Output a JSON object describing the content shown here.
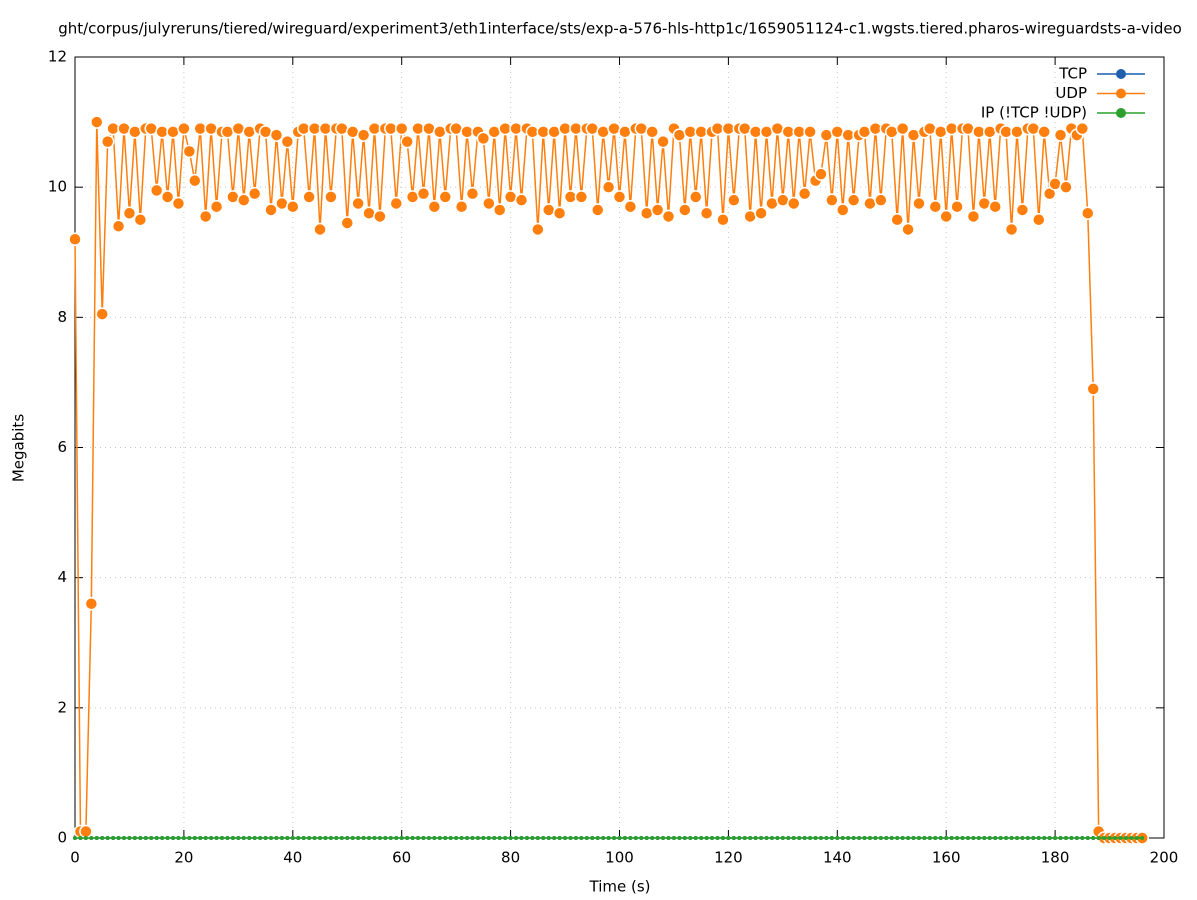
{
  "chart_data": {
    "type": "line",
    "title": "ght/corpus/julyreruns/tiered/wireguard/experiment3/eth1interface/sts/exp-a-576-hls-http1c/1659051124-c1.wgsts.tiered.pharos-wireguardsts-a-video",
    "x_label": "Time (s)",
    "y_label": "Megabits",
    "x": [
      0,
      1,
      2,
      3,
      4,
      5,
      6,
      7,
      8,
      9,
      10,
      11,
      12,
      13,
      14,
      15,
      16,
      17,
      18,
      19,
      20,
      21,
      22,
      23,
      24,
      25,
      26,
      27,
      28,
      29,
      30,
      31,
      32,
      33,
      34,
      35,
      36,
      37,
      38,
      39,
      40,
      41,
      42,
      43,
      44,
      45,
      46,
      47,
      48,
      49,
      50,
      51,
      52,
      53,
      54,
      55,
      56,
      57,
      58,
      59,
      60,
      61,
      62,
      63,
      64,
      65,
      66,
      67,
      68,
      69,
      70,
      71,
      72,
      73,
      74,
      75,
      76,
      77,
      78,
      79,
      80,
      81,
      82,
      83,
      84,
      85,
      86,
      87,
      88,
      89,
      90,
      91,
      92,
      93,
      94,
      95,
      96,
      97,
      98,
      99,
      100,
      101,
      102,
      103,
      104,
      105,
      106,
      107,
      108,
      109,
      110,
      111,
      112,
      113,
      114,
      115,
      116,
      117,
      118,
      119,
      120,
      121,
      122,
      123,
      124,
      125,
      126,
      127,
      128,
      129,
      130,
      131,
      132,
      133,
      134,
      135,
      136,
      137,
      138,
      139,
      140,
      141,
      142,
      143,
      144,
      145,
      146,
      147,
      148,
      149,
      150,
      151,
      152,
      153,
      154,
      155,
      156,
      157,
      158,
      159,
      160,
      161,
      162,
      163,
      164,
      165,
      166,
      167,
      168,
      169,
      170,
      171,
      172,
      173,
      174,
      175,
      176,
      177,
      178,
      179,
      180,
      181,
      182,
      183,
      184,
      185,
      186,
      187,
      188,
      189,
      190,
      191,
      192,
      193,
      194,
      195,
      196
    ],
    "series": [
      {
        "name": "TCP",
        "color": "#1f5fad",
        "values": [
          0,
          0,
          0,
          0,
          0,
          0,
          0,
          0,
          0,
          0,
          0,
          0,
          0,
          0,
          0,
          0,
          0,
          0,
          0,
          0,
          0,
          0,
          0,
          0,
          0,
          0,
          0,
          0,
          0,
          0,
          0,
          0,
          0,
          0,
          0,
          0,
          0,
          0,
          0,
          0,
          0,
          0,
          0,
          0,
          0,
          0,
          0,
          0,
          0,
          0,
          0,
          0,
          0,
          0,
          0,
          0,
          0,
          0,
          0,
          0,
          0,
          0,
          0,
          0,
          0,
          0,
          0,
          0,
          0,
          0,
          0,
          0,
          0,
          0,
          0,
          0,
          0,
          0,
          0,
          0,
          0,
          0,
          0,
          0,
          0,
          0,
          0,
          0,
          0,
          0,
          0,
          0,
          0,
          0,
          0,
          0,
          0,
          0,
          0,
          0,
          0,
          0,
          0,
          0,
          0,
          0,
          0,
          0,
          0,
          0,
          0,
          0,
          0,
          0,
          0,
          0,
          0,
          0,
          0,
          0,
          0,
          0,
          0,
          0,
          0,
          0,
          0,
          0,
          0,
          0,
          0,
          0,
          0,
          0,
          0,
          0,
          0,
          0,
          0,
          0,
          0,
          0,
          0,
          0,
          0,
          0,
          0,
          0,
          0,
          0,
          0,
          0,
          0,
          0,
          0,
          0,
          0,
          0,
          0,
          0,
          0,
          0,
          0,
          0,
          0,
          0,
          0,
          0,
          0,
          0,
          0,
          0,
          0,
          0,
          0,
          0,
          0,
          0,
          0,
          0,
          0,
          0,
          0,
          0,
          0,
          0,
          0,
          0,
          0,
          0,
          0,
          0,
          0,
          0,
          0,
          0,
          0
        ]
      },
      {
        "name": "UDP",
        "color": "#ff7f0e",
        "values": [
          9.2,
          0.1,
          0.1,
          3.6,
          11.0,
          8.05,
          10.7,
          10.9,
          9.4,
          10.9,
          9.6,
          10.85,
          9.5,
          10.9,
          10.9,
          9.95,
          10.85,
          9.85,
          10.85,
          9.75,
          10.9,
          10.55,
          10.1,
          10.9,
          9.55,
          10.9,
          9.7,
          10.85,
          10.85,
          9.85,
          10.9,
          9.8,
          10.85,
          9.9,
          10.9,
          10.85,
          9.65,
          10.8,
          9.75,
          10.7,
          9.7,
          10.85,
          10.9,
          9.85,
          10.9,
          9.35,
          10.9,
          9.85,
          10.9,
          10.9,
          9.45,
          10.85,
          9.75,
          10.8,
          9.6,
          10.9,
          9.55,
          10.9,
          10.9,
          9.75,
          10.9,
          10.7,
          9.85,
          10.9,
          9.9,
          10.9,
          9.7,
          10.85,
          9.85,
          10.9,
          10.9,
          9.7,
          10.85,
          9.9,
          10.85,
          10.75,
          9.75,
          10.85,
          9.65,
          10.9,
          9.85,
          10.9,
          9.8,
          10.9,
          10.85,
          9.35,
          10.85,
          9.65,
          10.85,
          9.6,
          10.9,
          9.85,
          10.9,
          9.85,
          10.9,
          10.9,
          9.65,
          10.85,
          10.0,
          10.9,
          9.85,
          10.85,
          9.7,
          10.9,
          10.9,
          9.6,
          10.85,
          9.65,
          10.7,
          9.55,
          10.9,
          10.8,
          9.65,
          10.85,
          9.85,
          10.85,
          9.6,
          10.85,
          10.9,
          9.5,
          10.9,
          9.8,
          10.9,
          10.9,
          9.55,
          10.85,
          9.6,
          10.85,
          9.75,
          10.9,
          9.8,
          10.85,
          9.75,
          10.85,
          9.9,
          10.85,
          10.1,
          10.2,
          10.8,
          9.8,
          10.85,
          9.65,
          10.8,
          9.8,
          10.8,
          10.85,
          9.75,
          10.9,
          9.8,
          10.9,
          10.85,
          9.5,
          10.9,
          9.35,
          10.8,
          9.75,
          10.85,
          10.9,
          9.7,
          10.85,
          9.55,
          10.9,
          9.7,
          10.9,
          10.9,
          9.55,
          10.85,
          9.75,
          10.85,
          9.7,
          10.9,
          10.85,
          9.35,
          10.85,
          9.65,
          10.9,
          10.9,
          9.5,
          10.85,
          9.9,
          10.05,
          10.8,
          10.0,
          10.9,
          10.8,
          10.9,
          9.6,
          6.9,
          0.1,
          0,
          0,
          0,
          0,
          0,
          0,
          0,
          0
        ]
      },
      {
        "name": "IP (!TCP  !UDP)",
        "color": "#2ca02c",
        "values": [
          0,
          0,
          0,
          0,
          0,
          0,
          0,
          0,
          0,
          0,
          0,
          0,
          0,
          0,
          0,
          0,
          0,
          0,
          0,
          0,
          0,
          0,
          0,
          0,
          0,
          0,
          0,
          0,
          0,
          0,
          0,
          0,
          0,
          0,
          0,
          0,
          0,
          0,
          0,
          0,
          0,
          0,
          0,
          0,
          0,
          0,
          0,
          0,
          0,
          0,
          0,
          0,
          0,
          0,
          0,
          0,
          0,
          0,
          0,
          0,
          0,
          0,
          0,
          0,
          0,
          0,
          0,
          0,
          0,
          0,
          0,
          0,
          0,
          0,
          0,
          0,
          0,
          0,
          0,
          0,
          0,
          0,
          0,
          0,
          0,
          0,
          0,
          0,
          0,
          0,
          0,
          0,
          0,
          0,
          0,
          0,
          0,
          0,
          0,
          0,
          0,
          0,
          0,
          0,
          0,
          0,
          0,
          0,
          0,
          0,
          0,
          0,
          0,
          0,
          0,
          0,
          0,
          0,
          0,
          0,
          0,
          0,
          0,
          0,
          0,
          0,
          0,
          0,
          0,
          0,
          0,
          0,
          0,
          0,
          0,
          0,
          0,
          0,
          0,
          0,
          0,
          0,
          0,
          0,
          0,
          0,
          0,
          0,
          0,
          0,
          0,
          0,
          0,
          0,
          0,
          0,
          0,
          0,
          0,
          0,
          0,
          0,
          0,
          0,
          0,
          0,
          0,
          0,
          0,
          0,
          0,
          0,
          0,
          0,
          0,
          0,
          0,
          0,
          0,
          0,
          0,
          0,
          0,
          0,
          0,
          0,
          0,
          0,
          0,
          0,
          0,
          0,
          0,
          0,
          0,
          0,
          0
        ]
      }
    ],
    "xlim": [
      0,
      200
    ],
    "xticks": [
      0,
      20,
      40,
      60,
      80,
      100,
      120,
      140,
      160,
      180,
      200
    ],
    "ylim": [
      0,
      12
    ],
    "yticks": [
      0,
      2,
      4,
      6,
      8,
      10,
      12
    ],
    "grid": true,
    "legend": "top right"
  }
}
